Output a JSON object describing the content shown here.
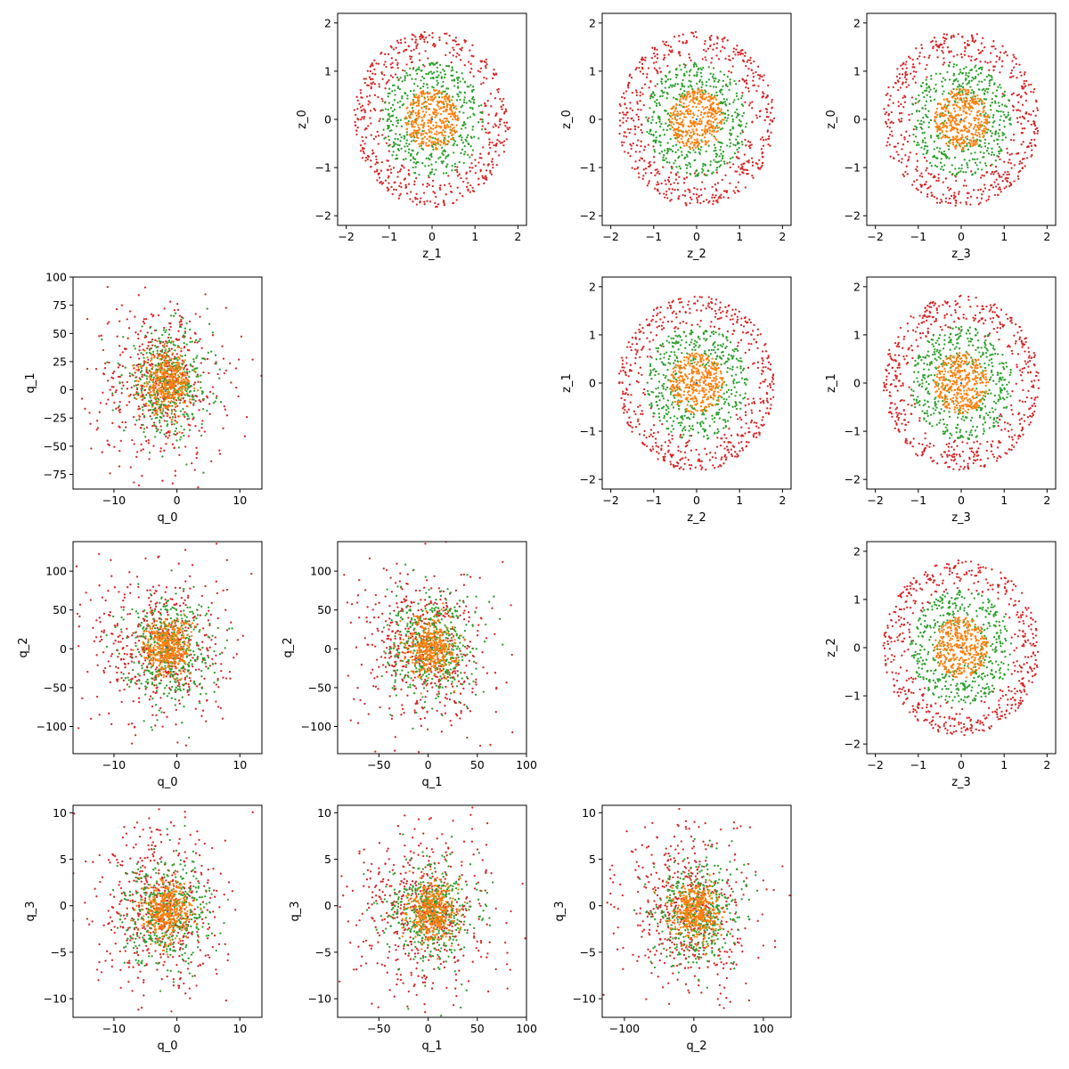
{
  "colors": {
    "outer": "#d62728",
    "middle": "#2ca02c",
    "inner": "#ff7f0e",
    "center": "#1f77b4"
  },
  "chart_data": [
    {
      "type": "scatter",
      "row": 0,
      "col": 1,
      "xlabel": "z_1",
      "ylabel": "z_0",
      "xlim": [
        -2.2,
        2.2
      ],
      "ylim": [
        -2.2,
        2.2
      ],
      "xticks": [
        -2,
        -1,
        0,
        1,
        2
      ],
      "yticks": [
        -2,
        -1,
        0,
        1,
        2
      ],
      "series": [
        {
          "values": {
            "x_center": 0,
            "y_center": 0,
            "spread": 2.0
          }
        },
        {
          "values": {
            "x_center": 0,
            "y_center": 0,
            "spread": 1.3
          }
        },
        {
          "values": {
            "x_center": 0,
            "y_center": 0,
            "spread": 0.7
          }
        }
      ]
    },
    {
      "type": "scatter",
      "row": 0,
      "col": 2,
      "xlabel": "z_2",
      "ylabel": "z_0",
      "xlim": [
        -2.2,
        2.2
      ],
      "ylim": [
        -2.2,
        2.2
      ],
      "xticks": [
        -2,
        -1,
        0,
        1,
        2
      ],
      "yticks": [
        -2,
        -1,
        0,
        1,
        2
      ],
      "series": [
        {
          "values": {
            "x_center": 0,
            "y_center": 0,
            "spread": 2.0
          }
        },
        {
          "values": {
            "x_center": 0,
            "y_center": 0,
            "spread": 1.3
          }
        },
        {
          "values": {
            "x_center": 0,
            "y_center": 0,
            "spread": 0.7
          }
        }
      ]
    },
    {
      "type": "scatter",
      "row": 0,
      "col": 3,
      "xlabel": "z_3",
      "ylabel": "z_0",
      "xlim": [
        -2.2,
        2.2
      ],
      "ylim": [
        -2.2,
        2.2
      ],
      "xticks": [
        -2,
        -1,
        0,
        1,
        2
      ],
      "yticks": [
        -2,
        -1,
        0,
        1,
        2
      ],
      "series": [
        {
          "values": {
            "x_center": 0,
            "y_center": 0,
            "spread": 2.0
          }
        },
        {
          "values": {
            "x_center": 0,
            "y_center": 0,
            "spread": 1.3
          }
        },
        {
          "values": {
            "x_center": 0,
            "y_center": 0,
            "spread": 0.7
          }
        }
      ]
    },
    {
      "type": "scatter",
      "row": 1,
      "col": 0,
      "xlabel": "q_0",
      "ylabel": "q_1",
      "xlim": [
        -16.5,
        13.5
      ],
      "ylim": [
        -88,
        100
      ],
      "xticks": [
        -10,
        0,
        10
      ],
      "yticks": [
        -75,
        -50,
        -25,
        0,
        25,
        50,
        75,
        100
      ],
      "series": [
        {
          "values": {
            "x_center": -2,
            "y_center": 0,
            "spread": 1
          }
        },
        {
          "values": {
            "x_center": -1,
            "y_center": 0,
            "spread": 0.6
          }
        },
        {
          "values": {
            "x_center": 0,
            "y_center": 0,
            "spread": 0.3
          }
        }
      ]
    },
    {
      "type": "scatter",
      "row": 1,
      "col": 2,
      "xlabel": "z_2",
      "ylabel": "z_1",
      "xlim": [
        -2.2,
        2.2
      ],
      "ylim": [
        -2.2,
        2.2
      ],
      "xticks": [
        -2,
        -1,
        0,
        1,
        2
      ],
      "yticks": [
        -2,
        -1,
        0,
        1,
        2
      ],
      "series": [
        {
          "values": {
            "x_center": 0,
            "y_center": 0,
            "spread": 2.0
          }
        },
        {
          "values": {
            "x_center": 0,
            "y_center": 0,
            "spread": 1.3
          }
        },
        {
          "values": {
            "x_center": 0,
            "y_center": 0,
            "spread": 0.7
          }
        }
      ]
    },
    {
      "type": "scatter",
      "row": 1,
      "col": 3,
      "xlabel": "z_3",
      "ylabel": "z_1",
      "xlim": [
        -2.2,
        2.2
      ],
      "ylim": [
        -2.2,
        2.2
      ],
      "xticks": [
        -2,
        -1,
        0,
        1,
        2
      ],
      "yticks": [
        -2,
        -1,
        0,
        1,
        2
      ],
      "series": [
        {
          "values": {
            "x_center": 0,
            "y_center": 0,
            "spread": 2.0
          }
        },
        {
          "values": {
            "x_center": 0,
            "y_center": 0,
            "spread": 1.3
          }
        },
        {
          "values": {
            "x_center": 0,
            "y_center": 0,
            "spread": 0.7
          }
        }
      ]
    },
    {
      "type": "scatter",
      "row": 2,
      "col": 0,
      "xlabel": "q_0",
      "ylabel": "q_2",
      "xlim": [
        -16.5,
        13.5
      ],
      "ylim": [
        -135,
        138
      ],
      "xticks": [
        -10,
        0,
        10
      ],
      "yticks": [
        -100,
        -50,
        0,
        50,
        100
      ],
      "series": [
        {
          "values": {
            "x_center": -2,
            "y_center": 0,
            "spread": 1
          }
        },
        {
          "values": {
            "x_center": -1,
            "y_center": 0,
            "spread": 0.6
          }
        },
        {
          "values": {
            "x_center": 0,
            "y_center": 0,
            "spread": 0.3
          }
        }
      ]
    },
    {
      "type": "scatter",
      "row": 2,
      "col": 1,
      "xlabel": "q_1",
      "ylabel": "q_2",
      "xlim": [
        -92,
        100
      ],
      "ylim": [
        -135,
        138
      ],
      "xticks": [
        -50,
        0,
        50,
        100
      ],
      "yticks": [
        -100,
        -50,
        0,
        50,
        100
      ],
      "series": [
        {
          "values": {
            "x_center": 0,
            "y_center": 0,
            "spread": 1
          }
        },
        {
          "values": {
            "x_center": 0,
            "y_center": 0,
            "spread": 0.6
          }
        },
        {
          "values": {
            "x_center": 0,
            "y_center": 0,
            "spread": 0.3
          }
        }
      ]
    },
    {
      "type": "scatter",
      "row": 2,
      "col": 3,
      "xlabel": "z_3",
      "ylabel": "z_2",
      "xlim": [
        -2.2,
        2.2
      ],
      "ylim": [
        -2.2,
        2.2
      ],
      "xticks": [
        -2,
        -1,
        0,
        1,
        2
      ],
      "yticks": [
        -2,
        -1,
        0,
        1,
        2
      ],
      "series": [
        {
          "values": {
            "x_center": 0,
            "y_center": 0,
            "spread": 2.0
          }
        },
        {
          "values": {
            "x_center": 0,
            "y_center": 0,
            "spread": 1.3
          }
        },
        {
          "values": {
            "x_center": 0,
            "y_center": 0,
            "spread": 0.7
          }
        }
      ]
    },
    {
      "type": "scatter",
      "row": 3,
      "col": 0,
      "xlabel": "q_0",
      "ylabel": "q_3",
      "xlim": [
        -16.5,
        13.5
      ],
      "ylim": [
        -12,
        10.8
      ],
      "xticks": [
        -10,
        0,
        10
      ],
      "yticks": [
        -10,
        -5,
        0,
        5,
        10
      ],
      "series": [
        {
          "values": {
            "x_center": -2,
            "y_center": 0,
            "spread": 1
          }
        },
        {
          "values": {
            "x_center": -1,
            "y_center": 0,
            "spread": 0.6
          }
        },
        {
          "values": {
            "x_center": 0,
            "y_center": 0,
            "spread": 0.3
          }
        }
      ]
    },
    {
      "type": "scatter",
      "row": 3,
      "col": 1,
      "xlabel": "q_1",
      "ylabel": "q_3",
      "xlim": [
        -92,
        100
      ],
      "ylim": [
        -12,
        10.8
      ],
      "xticks": [
        -50,
        0,
        50,
        100
      ],
      "yticks": [
        -10,
        -5,
        0,
        5,
        10
      ],
      "series": [
        {
          "values": {
            "x_center": 0,
            "y_center": 0,
            "spread": 1
          }
        },
        {
          "values": {
            "x_center": 0,
            "y_center": 0,
            "spread": 0.6
          }
        },
        {
          "values": {
            "x_center": 0,
            "y_center": 0,
            "spread": 0.3
          }
        }
      ]
    },
    {
      "type": "scatter",
      "row": 3,
      "col": 2,
      "xlabel": "q_2",
      "ylabel": "q_3",
      "xlim": [
        -132,
        140
      ],
      "ylim": [
        -12,
        10.8
      ],
      "xticks": [
        -100,
        0,
        100
      ],
      "yticks": [
        -10,
        -5,
        0,
        5,
        10
      ],
      "series": [
        {
          "values": {
            "x_center": 0,
            "y_center": 0,
            "spread": 1
          }
        },
        {
          "values": {
            "x_center": 0,
            "y_center": 0,
            "spread": 0.6
          }
        },
        {
          "values": {
            "x_center": 0,
            "y_center": 0,
            "spread": 0.3
          }
        }
      ]
    }
  ]
}
